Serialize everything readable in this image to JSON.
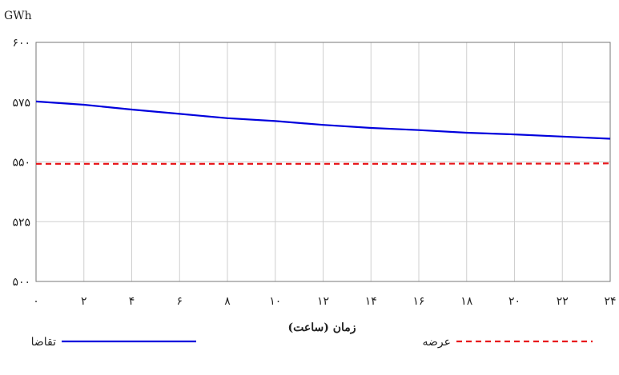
{
  "chart_data": {
    "type": "line",
    "unit_label": "GWh",
    "xlabel": "زمان (ساعت)",
    "ylabel": "",
    "xlim": [
      0,
      24
    ],
    "ylim": [
      500,
      600
    ],
    "x_ticks": [
      0,
      2,
      4,
      6,
      8,
      10,
      12,
      14,
      16,
      18,
      20,
      22,
      24
    ],
    "x_tick_labels": [
      "۰",
      "۲",
      "۴",
      "۶",
      "۸",
      "۱۰",
      "۱۲",
      "۱۴",
      "۱۶",
      "۱۸",
      "۲۰",
      "۲۲",
      "۲۴"
    ],
    "y_ticks": [
      500,
      525,
      550,
      575,
      600
    ],
    "y_tick_labels": [
      "۵۰۰",
      "۵۲۵",
      "۵۵۰",
      "۵۷۵",
      "۶۰۰"
    ],
    "grid": true,
    "legend_position": "bottom",
    "series": [
      {
        "name": "تقاضا",
        "color": "#0000dd",
        "line_style": "solid",
        "x": [
          0,
          2,
          4,
          6,
          8,
          10,
          12,
          14,
          16,
          18,
          20,
          22,
          24
        ],
        "y": [
          575.3,
          573.9,
          571.9,
          570.1,
          568.3,
          567.1,
          565.5,
          564.2,
          563.3,
          562.2,
          561.5,
          560.6,
          559.7
        ]
      },
      {
        "name": "عرضه",
        "color": "#e8191d",
        "line_style": "dashed",
        "x": [
          0,
          2,
          4,
          6,
          8,
          10,
          12,
          14,
          16,
          18,
          20,
          22,
          24
        ],
        "y": [
          549.2,
          549.2,
          549.2,
          549.2,
          549.2,
          549.2,
          549.2,
          549.2,
          549.2,
          549.3,
          549.3,
          549.3,
          549.4
        ]
      }
    ]
  }
}
